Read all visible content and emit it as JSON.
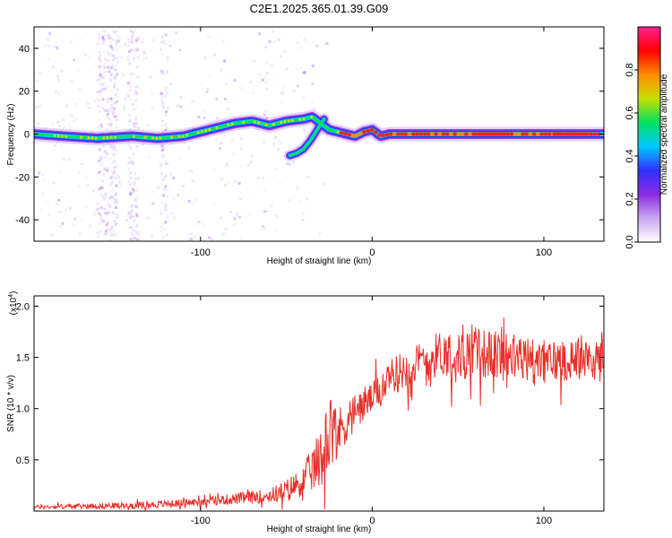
{
  "title": "C2E1.2025.365.01.39.G09",
  "chart_data": [
    {
      "type": "heatmap",
      "name": "spectrogram",
      "xlabel": "Height of straight line (km)",
      "ylabel": "Frequency (Hz)",
      "xlim": [
        -197,
        135
      ],
      "ylim": [
        -50,
        50
      ],
      "xticks": [
        -100,
        0,
        100
      ],
      "xtick_labels": [
        "-100",
        "0",
        "100"
      ],
      "yticks": [
        -40,
        -20,
        0,
        20,
        40
      ],
      "ytick_labels": [
        "-40",
        "-20",
        "0",
        "20",
        "40"
      ],
      "ridge": {
        "x": [
          -197,
          -180,
          -160,
          -140,
          -125,
          -110,
          -100,
          -90,
          -80,
          -70,
          -60,
          -50,
          -40,
          -35,
          -30,
          -25,
          -20,
          -15,
          -10,
          -5,
          0,
          5,
          10,
          20,
          40,
          60,
          80,
          100,
          120,
          135
        ],
        "y": [
          0,
          -1,
          -2,
          -1,
          -2,
          -1,
          1,
          3,
          5,
          6,
          4,
          6,
          7,
          8,
          5,
          2,
          1,
          0,
          -1,
          1,
          2,
          -1,
          0,
          0,
          0,
          0,
          0,
          0,
          0,
          0
        ]
      },
      "branch": {
        "x": [
          -48,
          -44,
          -40,
          -36,
          -32,
          -28
        ],
        "y": [
          -10,
          -9,
          -7,
          -3,
          2,
          7
        ]
      },
      "colorbar": {
        "label": "Normalized spectral amplitude",
        "range": [
          0,
          1
        ],
        "ticks": [
          0.0,
          0.2,
          0.4,
          0.6,
          0.8
        ],
        "tick_labels": [
          "0.0",
          "0.2",
          "0.4",
          "0.6",
          "0.8"
        ],
        "colors": [
          "#ffffff",
          "#c9a6f0",
          "#8a2be2",
          "#3030ff",
          "#00c8ff",
          "#00e060",
          "#c8e000",
          "#ff8c00",
          "#ff0000",
          "#ff2090"
        ]
      }
    },
    {
      "type": "line",
      "name": "snr",
      "xlabel": "Height of straight line (km)",
      "ylabel": "SNR (10 * v/v)",
      "multiplier": "(x10",
      "multiplier_exp": "4",
      "multiplier_close": ")",
      "xlim": [
        -197,
        135
      ],
      "ylim": [
        0,
        2.1
      ],
      "xticks": [
        -100,
        0,
        100
      ],
      "xtick_labels": [
        "-100",
        "0",
        "100"
      ],
      "yticks": [
        0.5,
        1.0,
        1.5,
        2.0
      ],
      "ytick_labels": [
        "0.5",
        "1.0",
        "1.5",
        "2.0"
      ],
      "color": "#e8302a",
      "trend": {
        "x": [
          -197,
          -160,
          -130,
          -110,
          -100,
          -80,
          -60,
          -50,
          -40,
          -33,
          -28,
          -25,
          -20,
          -15,
          -10,
          -5,
          0,
          5,
          10,
          15,
          20,
          30,
          40,
          50,
          60,
          80,
          100,
          120,
          135
        ],
        "y": [
          0.04,
          0.05,
          0.06,
          0.08,
          0.09,
          0.12,
          0.15,
          0.2,
          0.3,
          0.45,
          0.55,
          0.85,
          0.75,
          0.9,
          0.95,
          1.05,
          1.1,
          1.2,
          1.25,
          1.35,
          1.4,
          1.45,
          1.55,
          1.5,
          1.55,
          1.5,
          1.45,
          1.5,
          1.45
        ]
      },
      "noise": {
        "x": [
          -197,
          -100,
          -60,
          -40,
          -30,
          -25,
          -20,
          0,
          20,
          60,
          135
        ],
        "amp": [
          0.02,
          0.04,
          0.07,
          0.15,
          0.3,
          0.4,
          0.25,
          0.15,
          0.2,
          0.25,
          0.2
        ]
      }
    }
  ]
}
